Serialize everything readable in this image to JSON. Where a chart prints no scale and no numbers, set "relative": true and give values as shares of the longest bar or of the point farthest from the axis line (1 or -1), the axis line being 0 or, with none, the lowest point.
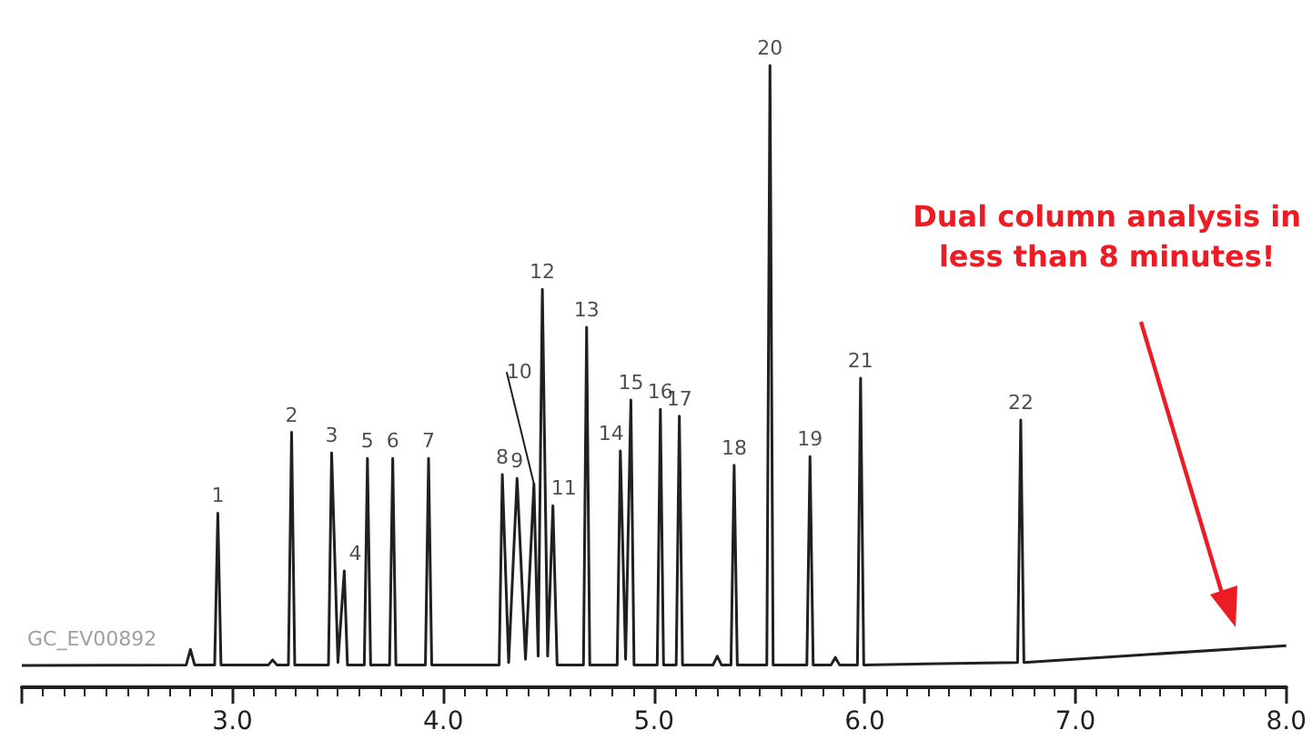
{
  "chart_data": {
    "type": "line",
    "relative": true,
    "marker": "none",
    "line_style": "solid",
    "xlim": [
      2,
      8
    ],
    "xticks": [
      {
        "value": 2,
        "label": null
      },
      {
        "value": 3,
        "label": "3.0"
      },
      {
        "value": 4,
        "label": "4.0"
      },
      {
        "value": 5,
        "label": "5.0"
      },
      {
        "value": 6,
        "label": "6.0"
      },
      {
        "value": 7,
        "label": "7.0"
      },
      {
        "value": 8,
        "label": "8.0"
      }
    ],
    "series": [
      {
        "color": "#231f20",
        "x": [
          2.0,
          2.78,
          2.8,
          2.82,
          2.915,
          2.93,
          2.945,
          3.17,
          3.19,
          3.21,
          3.265,
          3.28,
          3.295,
          3.455,
          3.47,
          3.5,
          3.53,
          3.545,
          3.625,
          3.64,
          3.655,
          3.745,
          3.76,
          3.775,
          3.915,
          3.93,
          3.945,
          4.265,
          4.28,
          4.31,
          4.35,
          4.39,
          4.43,
          4.45,
          4.47,
          4.495,
          4.52,
          4.54,
          4.665,
          4.68,
          4.695,
          4.825,
          4.84,
          4.865,
          4.89,
          4.905,
          5.015,
          5.03,
          5.045,
          5.105,
          5.12,
          5.135,
          5.28,
          5.3,
          5.32,
          5.365,
          5.38,
          5.395,
          5.535,
          5.55,
          5.565,
          5.725,
          5.74,
          5.755,
          5.84,
          5.86,
          5.88,
          5.965,
          5.98,
          5.995,
          6.725,
          6.74,
          6.755,
          8.0
        ],
        "values": [
          0.035,
          0.036,
          0.061,
          0.036,
          0.036,
          0.28,
          0.036,
          0.036,
          0.044,
          0.036,
          0.036,
          0.41,
          0.036,
          0.036,
          0.377,
          0.04,
          0.187,
          0.036,
          0.036,
          0.368,
          0.036,
          0.036,
          0.368,
          0.036,
          0.036,
          0.368,
          0.036,
          0.036,
          0.342,
          0.04,
          0.336,
          0.045,
          0.327,
          0.05,
          0.64,
          0.05,
          0.292,
          0.036,
          0.036,
          0.579,
          0.036,
          0.036,
          0.38,
          0.045,
          0.462,
          0.036,
          0.036,
          0.447,
          0.036,
          0.036,
          0.436,
          0.036,
          0.036,
          0.05,
          0.036,
          0.036,
          0.357,
          0.036,
          0.036,
          1.0,
          0.036,
          0.036,
          0.371,
          0.036,
          0.036,
          0.048,
          0.036,
          0.036,
          0.497,
          0.036,
          0.04,
          0.43,
          0.04,
          0.067
        ]
      }
    ],
    "annotations": [
      {
        "text": "1",
        "x": 2.93,
        "y": 0.28
      },
      {
        "text": "2",
        "x": 3.28,
        "y": 0.41
      },
      {
        "text": "3",
        "x": 3.47,
        "y": 0.377
      },
      {
        "text": "4",
        "x": 3.53,
        "y": 0.187
      },
      {
        "text": "5",
        "x": 3.64,
        "y": 0.368
      },
      {
        "text": "6",
        "x": 3.76,
        "y": 0.368
      },
      {
        "text": "7",
        "x": 3.93,
        "y": 0.368
      },
      {
        "text": "8",
        "x": 4.28,
        "y": 0.342
      },
      {
        "text": "9",
        "x": 4.35,
        "y": 0.336
      },
      {
        "text": "10",
        "x": 4.43,
        "y": 0.327
      },
      {
        "text": "11",
        "x": 4.52,
        "y": 0.292
      },
      {
        "text": "12",
        "x": 4.47,
        "y": 0.64
      },
      {
        "text": "13",
        "x": 4.68,
        "y": 0.579
      },
      {
        "text": "14",
        "x": 4.84,
        "y": 0.38
      },
      {
        "text": "15",
        "x": 4.89,
        "y": 0.462
      },
      {
        "text": "16",
        "x": 5.03,
        "y": 0.447
      },
      {
        "text": "17",
        "x": 5.12,
        "y": 0.436
      },
      {
        "text": "18",
        "x": 5.38,
        "y": 0.357
      },
      {
        "text": "20",
        "x": 5.55,
        "y": 1.0
      },
      {
        "text": "19",
        "x": 5.74,
        "y": 0.371
      },
      {
        "text": "21",
        "x": 5.98,
        "y": 0.497
      },
      {
        "text": "22",
        "x": 6.74,
        "y": 0.43
      },
      "Dual column analysis in\nless than 8 minutes!",
      "GC_EV00892"
    ]
  }
}
